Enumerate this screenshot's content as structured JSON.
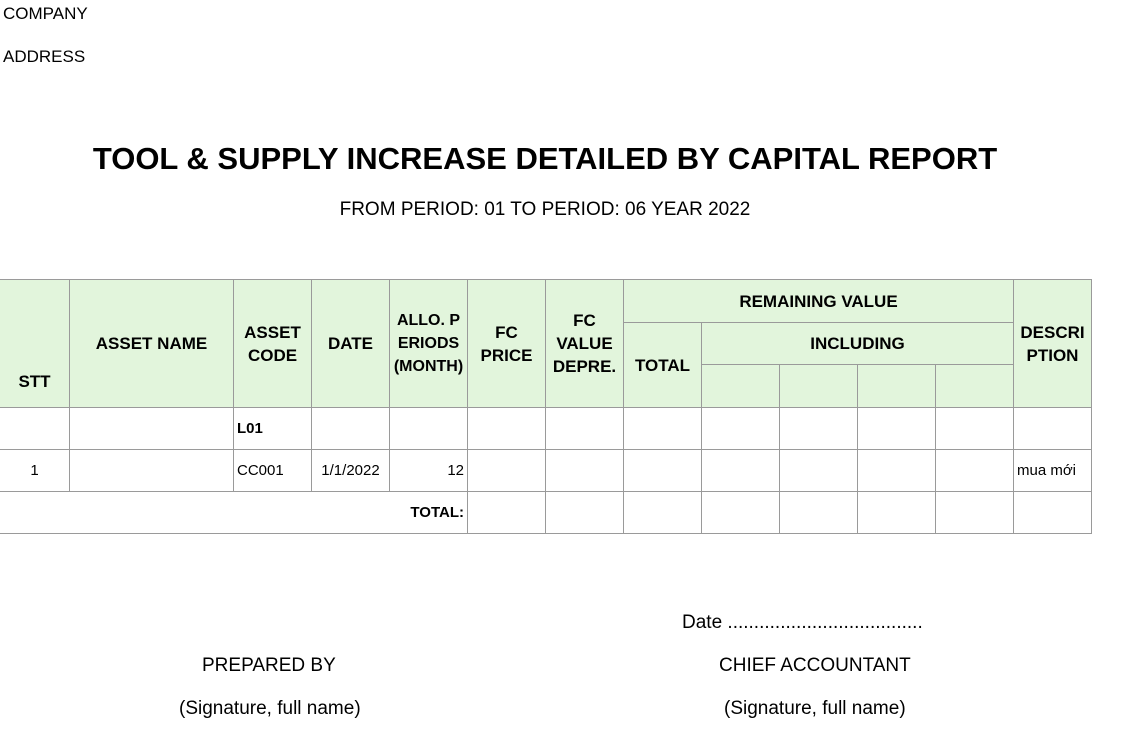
{
  "header": {
    "company": "COMPANY",
    "address": "ADDRESS",
    "title": "TOOL & SUPPLY INCREASE DETAILED BY CAPITAL REPORT",
    "subtitle": "FROM PERIOD: 01 TO PERIOD: 06 YEAR 2022"
  },
  "table": {
    "columns": {
      "stt": "STT",
      "asset_name": "ASSET NAME",
      "asset_code": "ASSET CODE",
      "date": "DATE",
      "allo_periods": "ALLO. PERIODS (MONTH)",
      "fc_price": "FC PRICE",
      "fc_value_depre": "FC VALUE DEPRE.",
      "remaining_value": "REMAINING VALUE",
      "total": "TOTAL",
      "including": "INCLUDING",
      "description": "DESCRIPTION"
    },
    "group_row": {
      "asset_code": "L01"
    },
    "rows": [
      {
        "stt": "1",
        "asset_name": "",
        "asset_code": "CC001",
        "date": "1/1/2022",
        "allo_periods": "12",
        "fc_price": "",
        "fc_value_depre": "",
        "total": "",
        "description": "mua mới"
      }
    ],
    "total_label": "TOTAL:"
  },
  "footer": {
    "date_line": "Date .....................................",
    "prepared_by": "PREPARED BY",
    "chief_accountant": "CHIEF ACCOUNTANT",
    "signature_left": "(Signature, full name)",
    "signature_right": "(Signature, full name)"
  }
}
